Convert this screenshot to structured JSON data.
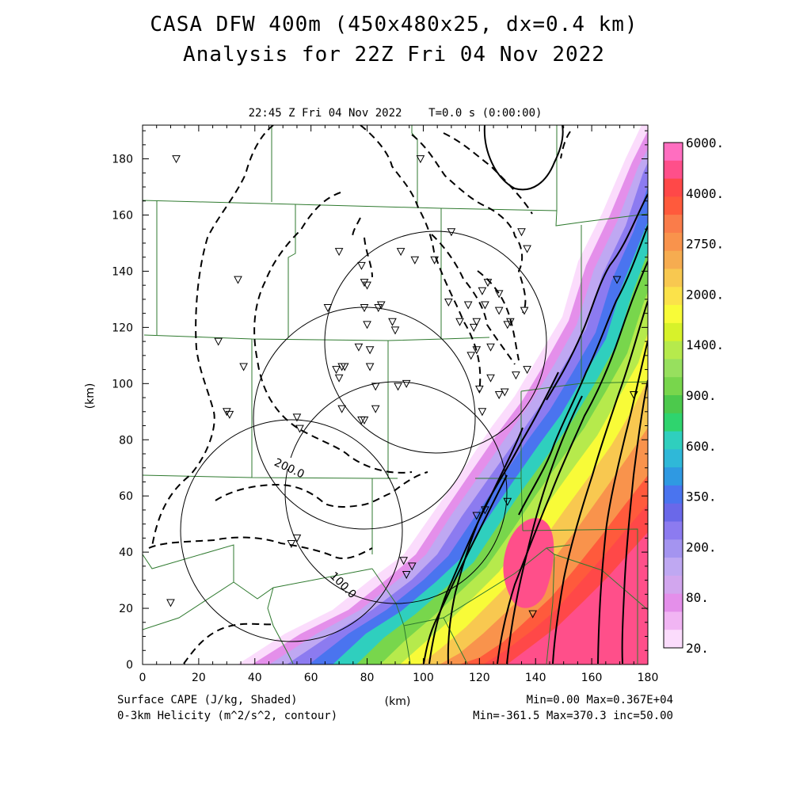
{
  "title": {
    "line1": "CASA DFW 400m (450x480x25, dx=0.4 km)",
    "line2": "Analysis for 22Z Fri 04 Nov 2022"
  },
  "subtitle": "22:45 Z Fri 04 Nov 2022    T=0.0 s (0:00:00)",
  "axes": {
    "x_label": "(km)",
    "y_label": "(km)",
    "x_ticks": [
      "0",
      "20",
      "40",
      "60",
      "80",
      "100",
      "120",
      "140",
      "160",
      "180"
    ],
    "y_ticks": [
      "0",
      "20",
      "40",
      "60",
      "80",
      "100",
      "120",
      "140",
      "160",
      "180"
    ],
    "x_range": [
      0,
      180
    ],
    "y_range": [
      0,
      192
    ]
  },
  "footer": {
    "left_line1": "Surface CAPE (J/kg, Shaded)",
    "left_line2": "0-3km Helicity (m^2/s^2, contour)",
    "right_line1": "Min=0.00 Max=0.367E+04",
    "right_line2": "Min=-361.5 Max=370.3 inc=50.00"
  },
  "colorbar": {
    "labels": [
      "6000.",
      "4000.",
      "2750.",
      "2000.",
      "1400.",
      "900.",
      "600.",
      "350.",
      "200.",
      "80.",
      "20."
    ],
    "colors": [
      "#ff6ec0",
      "#ff4f8a",
      "#ff4848",
      "#ff5a3c",
      "#fa7c4a",
      "#f9934c",
      "#f6ac50",
      "#f8c850",
      "#fbe24a",
      "#f8fb38",
      "#d7f22a",
      "#b6ea4c",
      "#97e05e",
      "#78d64c",
      "#4cc94c",
      "#2fd46e",
      "#2fcfbe",
      "#2fb8d8",
      "#2f99e2",
      "#4a74ef",
      "#6a68e9",
      "#8c7bf0",
      "#a494f0",
      "#bfa8f2",
      "#d2a6ee",
      "#e48fea",
      "#f1b5f3",
      "#fbdcfc"
    ]
  },
  "contour_labels": [
    "200.0",
    "100.0"
  ],
  "stations_km": [
    [
      12,
      180
    ],
    [
      34,
      137
    ],
    [
      27,
      115
    ],
    [
      36,
      106
    ],
    [
      30,
      90
    ],
    [
      31,
      89
    ],
    [
      55,
      88
    ],
    [
      56,
      84
    ],
    [
      53,
      43
    ],
    [
      55,
      45
    ],
    [
      70,
      147
    ],
    [
      78,
      142
    ],
    [
      79,
      136
    ],
    [
      80,
      135
    ],
    [
      66,
      127
    ],
    [
      79,
      127
    ],
    [
      84,
      127
    ],
    [
      85,
      128
    ],
    [
      80,
      121
    ],
    [
      89,
      122
    ],
    [
      90,
      119
    ],
    [
      77,
      113
    ],
    [
      81,
      112
    ],
    [
      69,
      105
    ],
    [
      71,
      106
    ],
    [
      72,
      106
    ],
    [
      70,
      102
    ],
    [
      81,
      106
    ],
    [
      83,
      99
    ],
    [
      91,
      99
    ],
    [
      94,
      100
    ],
    [
      71,
      91
    ],
    [
      78,
      87
    ],
    [
      79,
      87
    ],
    [
      83,
      91
    ],
    [
      92,
      147
    ],
    [
      97,
      144
    ],
    [
      104,
      144
    ],
    [
      110,
      154
    ],
    [
      99,
      180
    ],
    [
      109,
      129
    ],
    [
      116,
      128
    ],
    [
      118,
      120
    ],
    [
      119,
      122
    ],
    [
      121,
      133
    ],
    [
      123,
      136
    ],
    [
      122,
      128
    ],
    [
      127,
      132
    ],
    [
      127,
      126
    ],
    [
      130,
      121
    ],
    [
      131,
      122
    ],
    [
      124,
      113
    ],
    [
      119,
      112
    ],
    [
      117,
      110
    ],
    [
      113,
      122
    ],
    [
      120,
      98
    ],
    [
      121,
      90
    ],
    [
      124,
      102
    ],
    [
      127,
      96
    ],
    [
      129,
      97
    ],
    [
      133,
      103
    ],
    [
      135,
      154
    ],
    [
      137,
      148
    ],
    [
      137,
      105
    ],
    [
      136,
      126
    ],
    [
      119,
      53
    ],
    [
      122,
      55
    ],
    [
      130,
      58
    ],
    [
      139,
      18
    ],
    [
      169,
      137
    ],
    [
      175,
      96
    ],
    [
      94,
      32
    ],
    [
      93,
      37
    ],
    [
      96,
      35
    ],
    [
      10,
      22
    ]
  ],
  "cape_field": {
    "cape_min": 0.0,
    "cape_max": 3670,
    "helicity_min": -361.5,
    "helicity_max": 370.3,
    "helicity_inc": 50.0
  }
}
